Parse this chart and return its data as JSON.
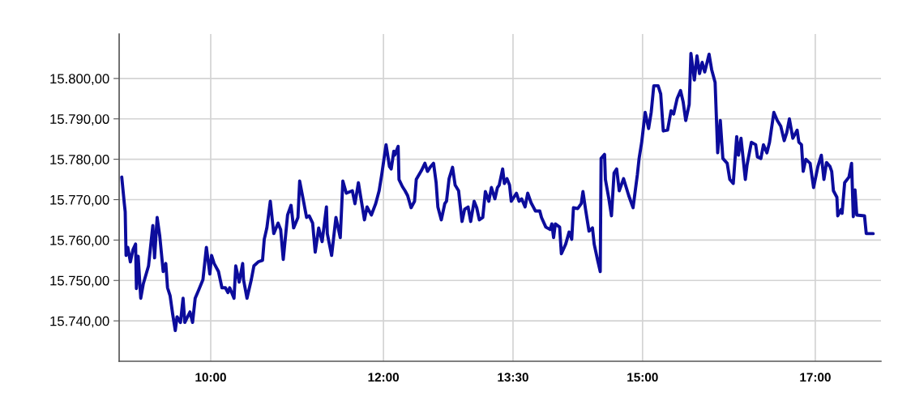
{
  "chart_data": {
    "type": "line",
    "color": "#0c0c9c",
    "grid": true,
    "legend": false,
    "marker": "none",
    "line_style": "solid",
    "x": [
      8.97,
      9.0,
      9.01,
      9.02,
      9.04,
      9.07,
      9.1,
      9.13,
      9.14,
      9.16,
      9.19,
      9.22,
      9.28,
      9.33,
      9.35,
      9.38,
      9.41,
      9.45,
      9.48,
      9.5,
      9.53,
      9.56,
      9.59,
      9.61,
      9.65,
      9.68,
      9.7,
      9.76,
      9.79,
      9.82,
      9.86,
      9.91,
      9.95,
      9.99,
      10.01,
      10.04,
      10.09,
      10.13,
      10.17,
      10.2,
      10.22,
      10.27,
      10.29,
      10.33,
      10.37,
      10.38,
      10.42,
      10.47,
      10.5,
      10.55,
      10.6,
      10.62,
      10.65,
      10.69,
      10.73,
      10.78,
      10.81,
      10.84,
      10.89,
      10.93,
      10.96,
      11.01,
      11.03,
      11.08,
      11.11,
      11.14,
      11.18,
      11.21,
      11.25,
      11.29,
      11.34,
      11.35,
      11.4,
      11.45,
      11.5,
      11.53,
      11.57,
      11.64,
      11.67,
      11.71,
      11.78,
      11.81,
      11.86,
      11.91,
      11.95,
      11.98,
      12.03,
      12.07,
      12.09,
      12.12,
      12.13,
      12.17,
      12.18,
      12.22,
      12.25,
      12.28,
      12.32,
      12.36,
      12.38,
      12.44,
      12.48,
      12.51,
      12.54,
      12.58,
      12.61,
      12.63,
      12.67,
      12.71,
      12.73,
      12.76,
      12.8,
      12.83,
      12.87,
      12.91,
      12.94,
      12.98,
      13.01,
      13.05,
      13.08,
      13.11,
      13.15,
      13.18,
      13.22,
      13.25,
      13.29,
      13.32,
      13.34,
      13.38,
      13.4,
      13.43,
      13.46,
      13.48,
      13.54,
      13.57,
      13.6,
      13.64,
      13.67,
      13.71,
      13.76,
      13.81,
      13.83,
      13.88,
      13.93,
      13.95,
      13.97,
      13.99,
      14.04,
      14.06,
      14.11,
      14.15,
      14.18,
      14.2,
      14.25,
      14.29,
      14.31,
      14.34,
      14.38,
      14.42,
      14.44,
      14.48,
      14.51,
      14.52,
      14.56,
      14.57,
      14.61,
      14.64,
      14.67,
      14.7,
      14.73,
      14.78,
      14.84,
      14.89,
      14.94,
      14.96,
      14.99,
      15.03,
      15.07,
      15.1,
      15.13,
      15.18,
      15.21,
      15.24,
      15.29,
      15.33,
      15.36,
      15.4,
      15.44,
      15.47,
      15.5,
      15.54,
      15.56,
      15.6,
      15.63,
      15.66,
      15.69,
      15.72,
      15.77,
      15.8,
      15.84,
      15.87,
      15.9,
      15.93,
      15.98,
      16.01,
      16.05,
      16.09,
      16.11,
      16.14,
      16.19,
      16.21,
      16.26,
      16.31,
      16.33,
      16.37,
      16.4,
      16.44,
      16.47,
      16.52,
      16.56,
      16.6,
      16.64,
      16.67,
      16.7,
      16.74,
      16.79,
      16.81,
      16.84,
      16.86,
      16.89,
      16.94,
      16.98,
      17.03,
      17.07,
      17.1,
      17.13,
      17.17,
      17.19,
      17.21,
      17.25,
      17.26,
      17.3,
      17.31,
      17.34,
      17.39,
      17.42,
      17.44,
      17.46,
      17.48,
      17.57,
      17.59,
      17.67
    ],
    "values": [
      15775.6,
      15769.0,
      15767.0,
      15756.2,
      15758.2,
      15754.6,
      15757.6,
      15759.0,
      15748.0,
      15756.0,
      15745.6,
      15749.2,
      15753.6,
      15763.6,
      15755.6,
      15765.6,
      15761.0,
      15752.2,
      15754.2,
      15748.2,
      15746.2,
      15741.6,
      15737.6,
      15741.0,
      15739.6,
      15745.6,
      15739.6,
      15742.2,
      15739.6,
      15745.6,
      15747.6,
      15750.2,
      15758.2,
      15751.6,
      15756.2,
      15754.2,
      15752.2,
      15748.2,
      15748.2,
      15747.0,
      15748.2,
      15745.6,
      15753.6,
      15749.6,
      15754.2,
      15750.2,
      15745.6,
      15750.2,
      15753.6,
      15754.6,
      15755.0,
      15760.2,
      15763.0,
      15769.6,
      15761.6,
      15764.2,
      15762.6,
      15755.2,
      15766.2,
      15768.6,
      15763.0,
      15765.6,
      15774.6,
      15769.0,
      15765.6,
      15766.0,
      15764.2,
      15757.0,
      15763.0,
      15759.6,
      15768.2,
      15761.6,
      15756.2,
      15765.6,
      15760.6,
      15774.6,
      15771.6,
      15772.2,
      15769.0,
      15774.2,
      15765.0,
      15768.2,
      15766.2,
      15769.0,
      15772.2,
      15776.2,
      15783.6,
      15778.2,
      15777.6,
      15782.0,
      15781.0,
      15783.2,
      15775.0,
      15773.2,
      15772.2,
      15771.0,
      15768.0,
      15769.6,
      15775.0,
      15777.2,
      15779.0,
      15777.0,
      15778.0,
      15779.0,
      15774.2,
      15768.2,
      15765.0,
      15769.0,
      15769.6,
      15775.2,
      15778.0,
      15773.6,
      15772.2,
      15764.6,
      15767.6,
      15768.2,
      15764.6,
      15769.6,
      15768.0,
      15765.0,
      15765.6,
      15772.0,
      15769.6,
      15773.0,
      15770.2,
      15773.0,
      15773.6,
      15777.6,
      15774.0,
      15775.2,
      15773.6,
      15769.6,
      15771.6,
      15769.6,
      15770.2,
      15768.2,
      15771.6,
      15769.2,
      15767.2,
      15767.2,
      15765.6,
      15763.2,
      15762.6,
      15764.0,
      15760.6,
      15764.0,
      15763.2,
      15756.6,
      15759.0,
      15762.0,
      15760.2,
      15768.0,
      15767.8,
      15769.0,
      15772.0,
      15767.6,
      15762.2,
      15763.0,
      15759.0,
      15755.0,
      15752.2,
      15780.2,
      15781.2,
      15775.0,
      15770.2,
      15766.0,
      15776.6,
      15777.6,
      15772.2,
      15775.2,
      15771.0,
      15768.0,
      15776.2,
      15780.2,
      15784.2,
      15791.6,
      15787.6,
      15791.6,
      15798.2,
      15798.2,
      15796.2,
      15787.0,
      15787.2,
      15792.0,
      15791.2,
      15795.0,
      15797.0,
      15794.2,
      15789.6,
      15793.6,
      15806.2,
      15799.6,
      15805.6,
      15801.2,
      15804.0,
      15801.6,
      15806.0,
      15802.2,
      15799.0,
      15781.6,
      15789.6,
      15780.2,
      15779.0,
      15775.0,
      15774.0,
      15785.6,
      15781.0,
      15785.2,
      15775.0,
      15778.6,
      15784.2,
      15783.6,
      15780.6,
      15780.2,
      15783.6,
      15781.6,
      15784.2,
      15791.6,
      15789.6,
      15788.2,
      15784.6,
      15786.6,
      15790.0,
      15785.2,
      15787.2,
      15784.2,
      15783.6,
      15777.0,
      15780.0,
      15779.0,
      15773.0,
      15778.2,
      15781.0,
      15775.0,
      15779.2,
      15778.2,
      15777.0,
      15772.2,
      15770.6,
      15766.0,
      15767.6,
      15766.6,
      15774.2,
      15775.6,
      15779.0,
      15765.8,
      15772.4,
      15766.2,
      15766.0,
      15761.6,
      15761.6
    ],
    "xlim": [
      8.94,
      17.76
    ],
    "xticks": [
      {
        "value": 10,
        "label": "10:00"
      },
      {
        "value": 12,
        "label": "12:00"
      },
      {
        "value": 13.5,
        "label": "13:30"
      },
      {
        "value": 15,
        "label": "15:00"
      },
      {
        "value": 17,
        "label": "17:00"
      }
    ],
    "ylim": [
      15730,
      15811
    ],
    "yticks": [
      {
        "value": 15740,
        "label": "15.740,00"
      },
      {
        "value": 15750,
        "label": "15.750,00"
      },
      {
        "value": 15760,
        "label": "15.760,00"
      },
      {
        "value": 15770,
        "label": "15.770,00"
      },
      {
        "value": 15780,
        "label": "15.780,00"
      },
      {
        "value": 15790,
        "label": "15.790,00"
      },
      {
        "value": 15800,
        "label": "15.800,00"
      }
    ]
  }
}
